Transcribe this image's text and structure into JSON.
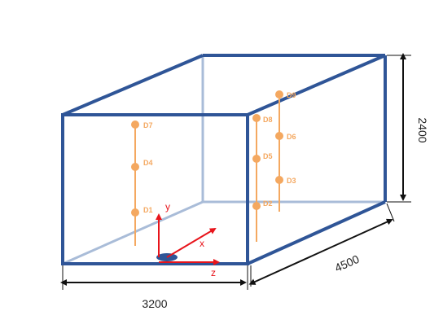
{
  "colors": {
    "frame": "#2f5597",
    "frame_light": "#a9bcd8",
    "sensor": "#f4a860",
    "axis": "#e8141b",
    "dimension": "#111111"
  },
  "dimensions": {
    "width_label": "3200",
    "depth_label": "4500",
    "height_label": "2400"
  },
  "axes": {
    "x_label": "x",
    "y_label": "y",
    "z_label": "z"
  },
  "sensors": {
    "D1": "D1",
    "D2": "D2",
    "D3": "D3",
    "D4": "D4",
    "D5": "D5",
    "D6": "D6",
    "D7": "D7",
    "D8": "D8",
    "D9": "D9"
  }
}
